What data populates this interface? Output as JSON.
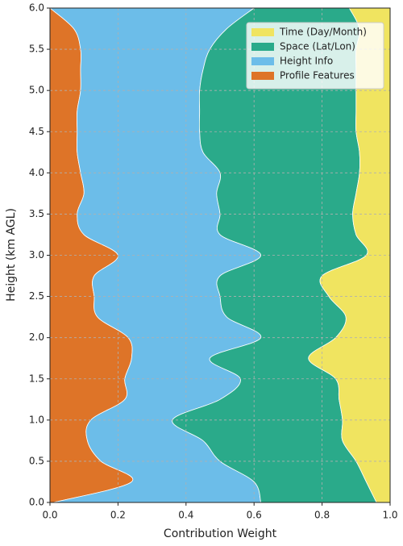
{
  "chart_data": {
    "type": "area",
    "stacked": true,
    "orientation": "horizontal",
    "xlabel": "Contribution Weight",
    "ylabel": "Height (km AGL)",
    "y": [
      0,
      0.25,
      0.5,
      0.75,
      1.0,
      1.25,
      1.5,
      1.75,
      2.0,
      2.25,
      2.5,
      2.75,
      3.0,
      3.25,
      3.5,
      3.75,
      4.0,
      4.25,
      4.5,
      4.75,
      5.0,
      5.25,
      5.5,
      5.75,
      6.0
    ],
    "series": [
      {
        "name": "Time (Day/Month)",
        "color": "#f0e460",
        "values": [
          0.04,
          0.07,
          0.1,
          0.14,
          0.14,
          0.15,
          0.16,
          0.24,
          0.16,
          0.13,
          0.18,
          0.2,
          0.07,
          0.1,
          0.11,
          0.1,
          0.09,
          0.09,
          0.1,
          0.1,
          0.1,
          0.1,
          0.1,
          0.09,
          0.12
        ]
      },
      {
        "name": "Space (Lat/Lon)",
        "color": "#2aaa8a",
        "values": [
          0.34,
          0.33,
          0.4,
          0.41,
          0.5,
          0.35,
          0.28,
          0.29,
          0.22,
          0.35,
          0.32,
          0.3,
          0.31,
          0.4,
          0.39,
          0.41,
          0.41,
          0.46,
          0.46,
          0.46,
          0.46,
          0.45,
          0.43,
          0.39,
          0.28
        ]
      },
      {
        "name": "Height Info",
        "color": "#6cbde9",
        "values": [
          0.61,
          0.36,
          0.35,
          0.34,
          0.24,
          0.28,
          0.34,
          0.23,
          0.39,
          0.38,
          0.37,
          0.37,
          0.42,
          0.4,
          0.42,
          0.39,
          0.41,
          0.37,
          0.36,
          0.36,
          0.35,
          0.36,
          0.38,
          0.45,
          0.6
        ]
      },
      {
        "name": "Profile Features",
        "color": "#de7428",
        "values": [
          0.01,
          0.24,
          0.15,
          0.11,
          0.12,
          0.22,
          0.22,
          0.24,
          0.23,
          0.14,
          0.13,
          0.13,
          0.2,
          0.1,
          0.08,
          0.1,
          0.09,
          0.08,
          0.08,
          0.08,
          0.09,
          0.09,
          0.09,
          0.07,
          0.0
        ]
      }
    ],
    "xlim": [
      0,
      1.0
    ],
    "ylim": [
      0,
      6.0
    ],
    "xticks": [
      {
        "value": 0,
        "label": "0.0"
      },
      {
        "value": 0.2,
        "label": "0.2"
      },
      {
        "value": 0.4,
        "label": "0.4"
      },
      {
        "value": 0.6,
        "label": "0.6"
      },
      {
        "value": 0.8,
        "label": "0.8"
      },
      {
        "value": 1.0,
        "label": "1.0"
      }
    ],
    "yticks": [
      {
        "value": 0,
        "label": "0.0"
      },
      {
        "value": 0.5,
        "label": "0.5"
      },
      {
        "value": 1.0,
        "label": "1.0"
      },
      {
        "value": 1.5,
        "label": "1.5"
      },
      {
        "value": 2.0,
        "label": "2.0"
      },
      {
        "value": 2.5,
        "label": "2.5"
      },
      {
        "value": 3.0,
        "label": "3.0"
      },
      {
        "value": 3.5,
        "label": "3.5"
      },
      {
        "value": 4.0,
        "label": "4.0"
      },
      {
        "value": 4.5,
        "label": "4.5"
      },
      {
        "value": 5.0,
        "label": "5.0"
      },
      {
        "value": 5.5,
        "label": "5.5"
      },
      {
        "value": 6.0,
        "label": "6.0"
      }
    ],
    "grid": true,
    "legend": "upper right"
  }
}
